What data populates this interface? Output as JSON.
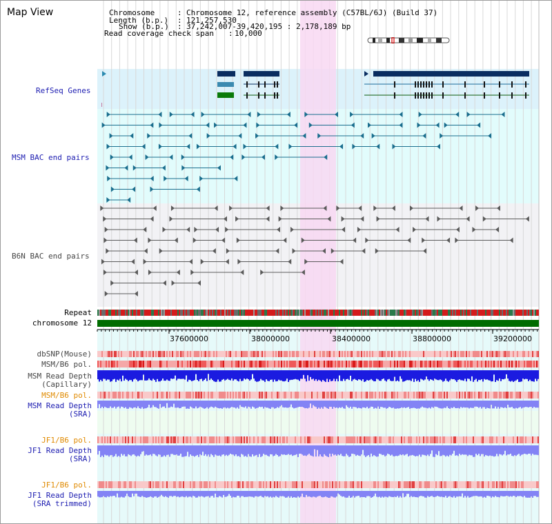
{
  "view": {
    "title": "Map View"
  },
  "info": {
    "chromosome_key": "Chromosome",
    "chromosome_val": "Chromosome 12, reference assembly (C57BL/6J) (Build 37)",
    "length_key": "Length (b.p.)",
    "length_val": "121,257,530",
    "show_key": "Show (b.p.)",
    "show_val": "37,242,007-39,420,195 : 2,178,189 bp",
    "coverage_key": "Read coverage check span",
    "coverage_val": "10,000"
  },
  "tracks": {
    "refseq": "RefSeq Genes",
    "msm_bac": "MSM BAC end pairs",
    "b6n_bac": "B6N BAC end pairs",
    "repeat": "Repeat",
    "chromosome": "chromosome 12",
    "dbsnp": "dbSNP(Mouse)",
    "msm_b6_pol": "MSM/B6 pol.",
    "msm_read_depth_cap_1": "MSM Read Depth",
    "msm_read_depth_cap_2": "(Capillary)",
    "msm_b6_pol_2": "MSM/B6 pol.",
    "msm_read_depth_sra_1": "MSM Read Depth",
    "msm_read_depth_sra_2": "(SRA)",
    "jf1_b6_pol": "JF1/B6 pol.",
    "jf1_read_depth_sra_1": "JF1 Read Depth",
    "jf1_read_depth_sra_2": "(SRA)",
    "jf1_b6_pol_2": "JF1/B6 pol.",
    "jf1_read_depth_trim_1": "JF1 Read Depth",
    "jf1_read_depth_trim_2": "(SRA trimmed)"
  },
  "axis": {
    "ticks": [
      "37600000",
      "38000000",
      "38400000",
      "38800000",
      "39200000"
    ]
  },
  "colors": {
    "highlight": "#f8d8f2",
    "refseq_bg": "#dcf2fb",
    "msm_bg": "#e2fcfc",
    "b6n_bg": "#f2f2f5",
    "chromosome_bar": "#006c00",
    "depth_blue": "#1b1be0",
    "depth_violet": "#8383f5",
    "pol_red": "#e8404a"
  }
}
